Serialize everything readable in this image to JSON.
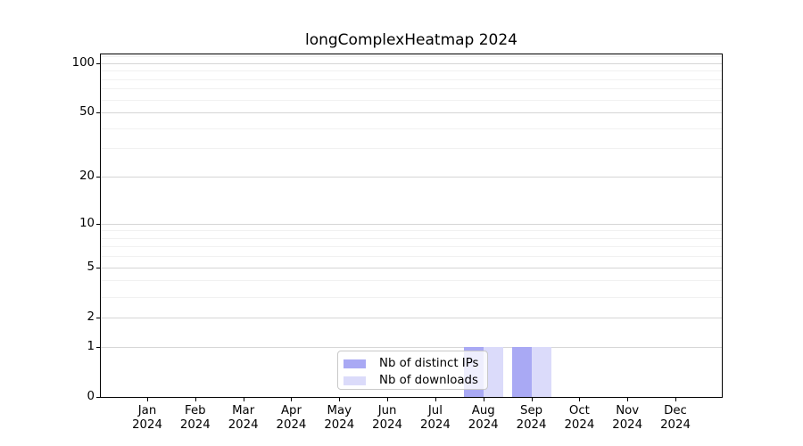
{
  "chart_data": {
    "type": "bar",
    "title": "longComplexHeatmap 2024",
    "categories": [
      "Jan",
      "Feb",
      "Mar",
      "Apr",
      "May",
      "Jun",
      "Jul",
      "Aug",
      "Sep",
      "Oct",
      "Nov",
      "Dec"
    ],
    "year_label": "2024",
    "series": [
      {
        "name": "Nb of distinct IPs",
        "color": "#a9a9f4",
        "values": [
          0,
          0,
          0,
          0,
          0,
          0,
          0,
          1,
          1,
          0,
          0,
          0
        ]
      },
      {
        "name": "Nb of downloads",
        "color": "#dbdbfa",
        "values": [
          0,
          0,
          0,
          0,
          0,
          0,
          0,
          1,
          1,
          0,
          0,
          0
        ]
      }
    ],
    "y_scale": "log1p",
    "y_ticks": [
      0,
      1,
      2,
      5,
      10,
      20,
      50,
      100
    ],
    "y_minor_ticks": [
      3,
      4,
      6,
      7,
      8,
      9,
      30,
      40,
      60,
      70,
      80,
      90,
      110
    ],
    "ylim": [
      0,
      112.8
    ],
    "grid": "horizontal",
    "legend_position": "lower center",
    "colors": {
      "major_grid": "#d6d6d6",
      "minor_grid": "#f1f1f1",
      "axis": "#000000",
      "text": "#000000"
    }
  }
}
